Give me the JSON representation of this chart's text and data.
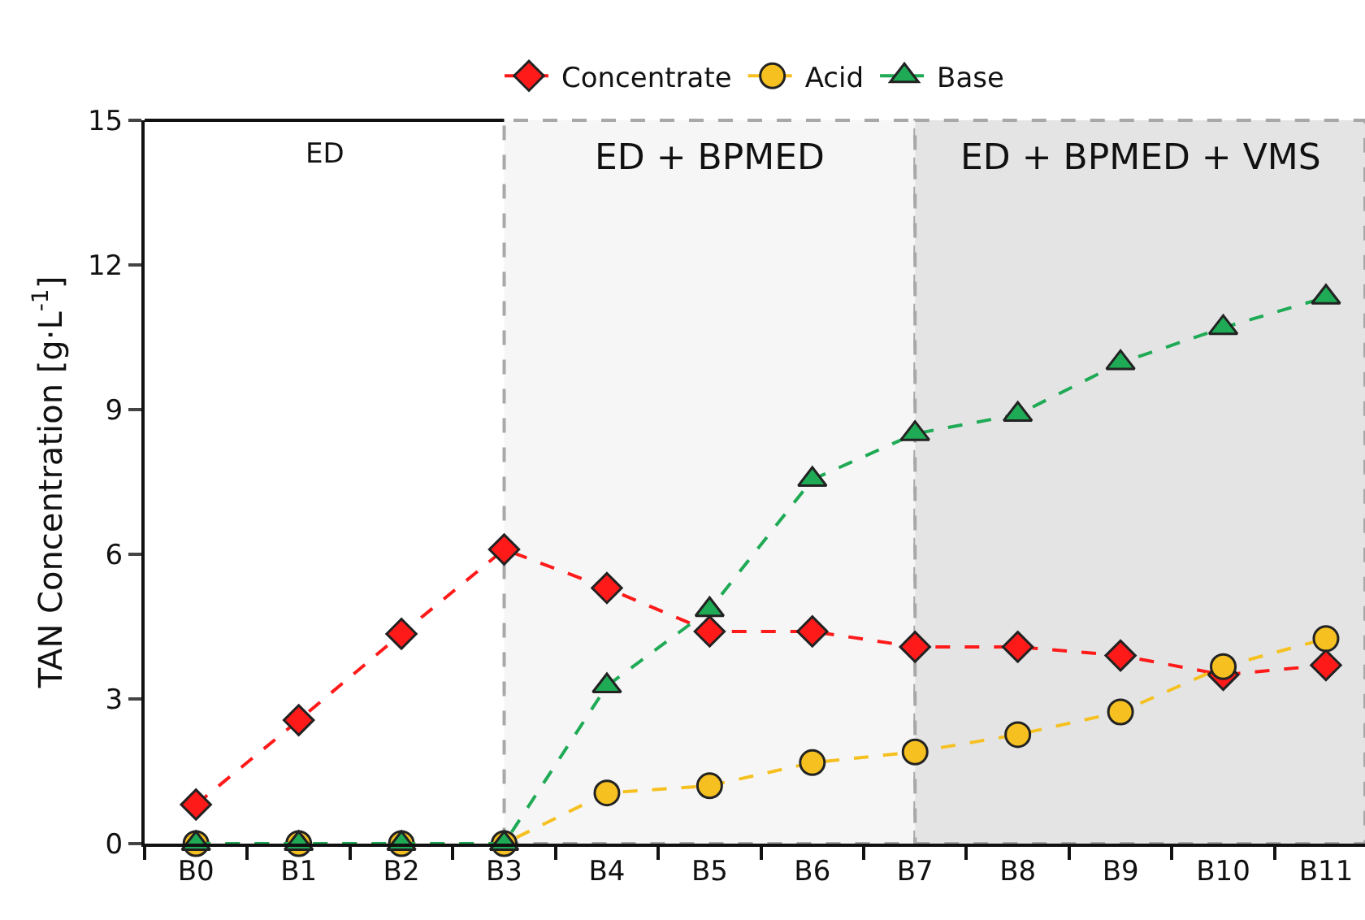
{
  "chart_data": {
    "type": "line",
    "ylabel": "TAN Concentration [g·L$^{-1}$]",
    "categories": [
      "B0",
      "B1",
      "B2",
      "B3",
      "B4",
      "B5",
      "B6",
      "B7",
      "B8",
      "B9",
      "B10",
      "B11"
    ],
    "series": [
      {
        "name": "Concentrate",
        "color": "#ff1a1a",
        "marker": "diamond",
        "values": [
          0.81,
          2.56,
          4.35,
          6.1,
          5.3,
          4.4,
          4.4,
          4.08,
          4.08,
          3.9,
          3.5,
          3.7
        ]
      },
      {
        "name": "Acid",
        "color": "#f5c020",
        "marker": "circle",
        "values": [
          0,
          0,
          0,
          0,
          1.05,
          1.2,
          1.68,
          1.9,
          2.26,
          2.73,
          3.67,
          4.25
        ]
      },
      {
        "name": "Base",
        "color": "#1faa55",
        "marker": "triangle",
        "values": [
          0,
          0,
          0,
          0,
          3.27,
          4.85,
          7.55,
          8.5,
          8.9,
          9.97,
          10.7,
          11.33
        ]
      }
    ],
    "bands": [
      {
        "axis": "x",
        "from": "B3",
        "to": "B7",
        "label": "ED + BPMED",
        "color": "#f6f6f6"
      },
      {
        "axis": "x",
        "from": "B7",
        "to": "B11",
        "label": "ED + BPMED + VMS",
        "color": "#e4e4e4"
      }
    ],
    "annotations": [
      "ED"
    ],
    "ylim": [
      0,
      15
    ],
    "yticks": [
      0,
      3,
      6,
      9,
      12,
      15
    ],
    "line_style": "dashed",
    "legend": "top",
    "grid": false
  }
}
